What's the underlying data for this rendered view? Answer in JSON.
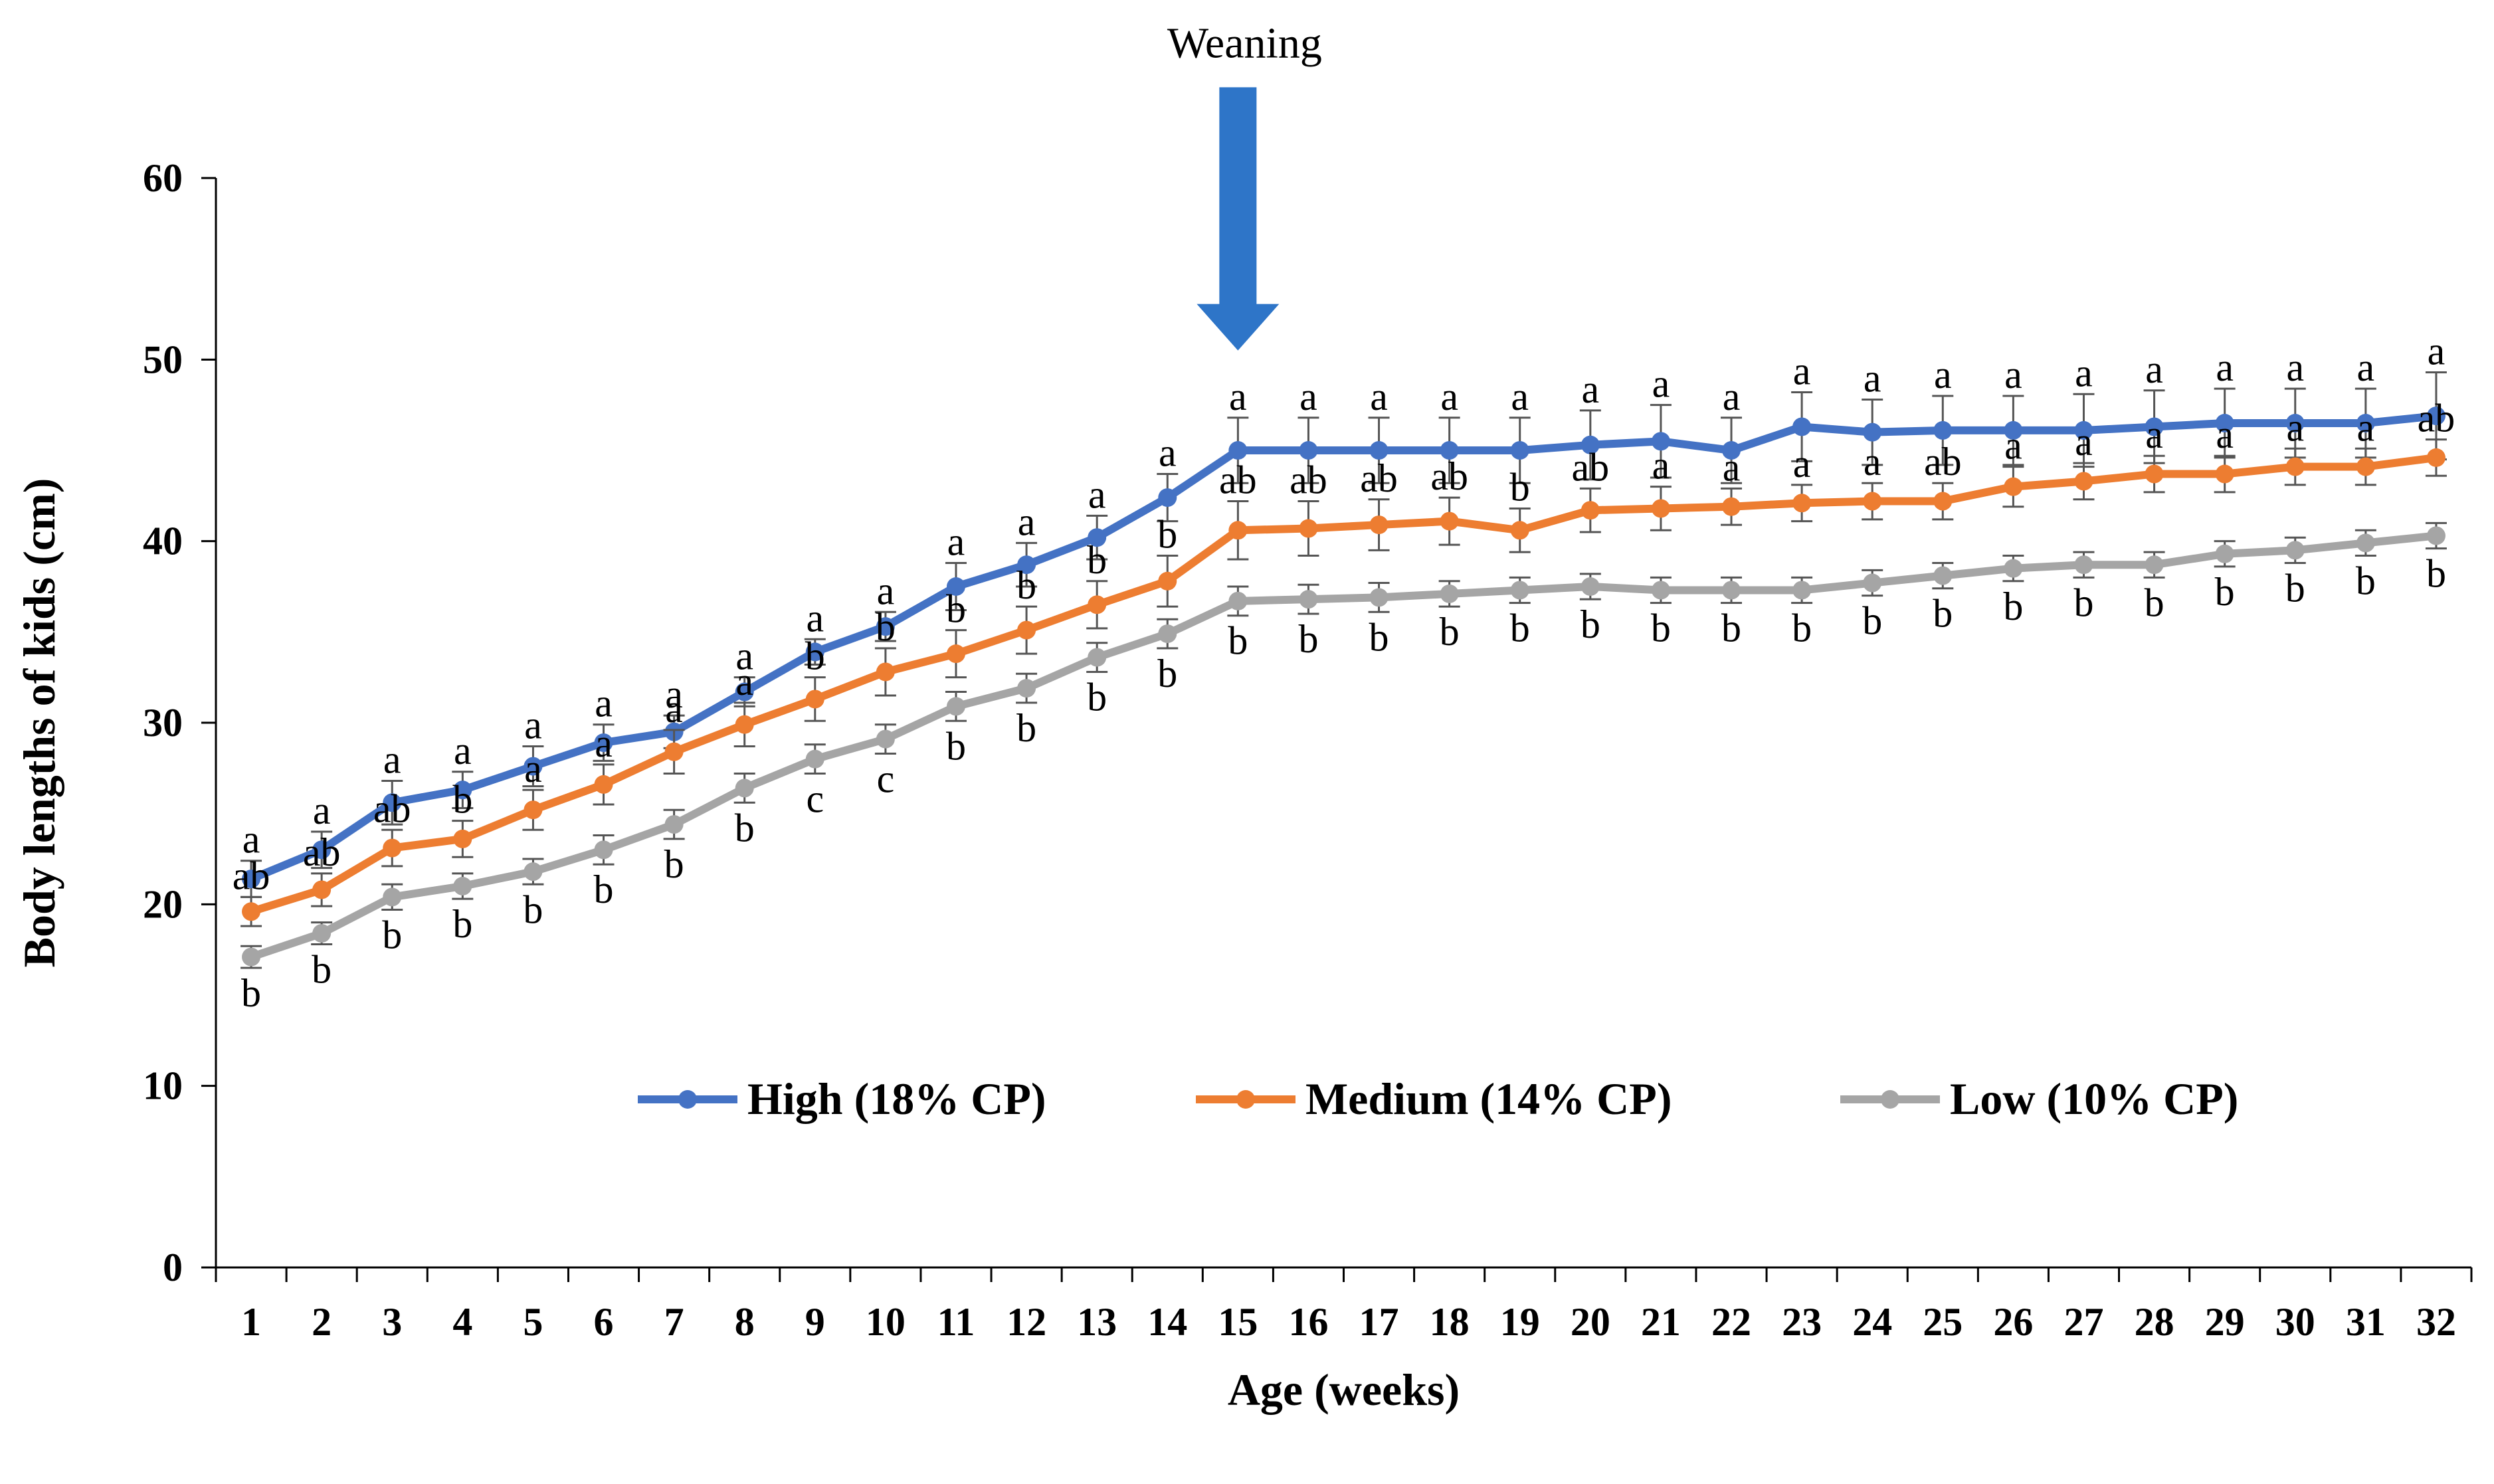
{
  "chart_data": {
    "type": "line",
    "title": "",
    "xlabel": "Age (weeks)",
    "ylabel": "Body lengths of kids (cm)",
    "ylim": [
      0,
      60
    ],
    "yticks": [
      0,
      10,
      20,
      30,
      40,
      50,
      60
    ],
    "x": [
      1,
      2,
      3,
      4,
      5,
      6,
      7,
      8,
      9,
      10,
      11,
      12,
      13,
      14,
      15,
      16,
      17,
      18,
      19,
      20,
      21,
      22,
      23,
      24,
      25,
      26,
      27,
      28,
      29,
      30,
      31,
      32
    ],
    "x_tick_labels": [
      "1",
      "2",
      "3",
      "4",
      "5",
      "6",
      "7",
      "8",
      "9",
      "10",
      "11",
      "12",
      "13",
      "14",
      "15",
      "16",
      "17",
      "18",
      "19",
      "20",
      "21",
      "22",
      "23",
      "24",
      "25",
      "26",
      "27",
      "28",
      "29",
      "30",
      "31",
      "32"
    ],
    "legend_position": "lower-right",
    "annotation": {
      "label": "Weaning",
      "x": 15,
      "y_top": 65,
      "y_tip": 50.5
    },
    "series": [
      {
        "name": "High (18% CP)",
        "color": "#4472C4",
        "values": [
          21.4,
          23.0,
          25.6,
          26.3,
          27.6,
          28.9,
          29.5,
          31.7,
          33.9,
          35.3,
          37.5,
          38.7,
          40.2,
          42.4,
          45.0,
          45.0,
          45.0,
          45.0,
          45.0,
          45.3,
          45.5,
          45.0,
          46.3,
          46.0,
          46.1,
          46.1,
          46.1,
          46.3,
          46.5,
          46.5,
          46.5,
          46.9
        ],
        "errors": [
          1.0,
          1.0,
          1.2,
          1.0,
          1.1,
          1.0,
          0.9,
          0.8,
          0.7,
          0.8,
          1.3,
          1.2,
          1.2,
          1.3,
          1.8,
          1.8,
          1.8,
          1.8,
          1.8,
          1.9,
          2.0,
          1.8,
          1.9,
          1.8,
          1.9,
          1.9,
          2.0,
          2.0,
          1.9,
          1.9,
          1.9,
          2.4
        ],
        "letters": [
          "a",
          "a",
          "a",
          "a",
          "a",
          "a",
          "a",
          "a",
          "a",
          "a",
          "a",
          "a",
          "a",
          "a",
          "a",
          "a",
          "a",
          "a",
          "a",
          "a",
          "a",
          "a",
          "a",
          "a",
          "a",
          "a",
          "a",
          "a",
          "a",
          "a",
          "a",
          "a"
        ]
      },
      {
        "name": "Medium (14% CP)",
        "color": "#ED7D31",
        "values": [
          19.6,
          20.8,
          23.1,
          23.6,
          25.2,
          26.6,
          28.4,
          29.9,
          31.3,
          32.8,
          33.8,
          35.1,
          36.5,
          37.8,
          40.6,
          40.7,
          40.9,
          41.1,
          40.6,
          41.7,
          41.8,
          41.9,
          42.1,
          42.2,
          42.2,
          43.0,
          43.3,
          43.7,
          43.7,
          44.1,
          44.1,
          44.6
        ],
        "errors": [
          0.8,
          0.9,
          1.0,
          1.0,
          1.1,
          1.1,
          1.2,
          1.2,
          1.2,
          1.3,
          1.3,
          1.3,
          1.3,
          1.4,
          1.6,
          1.5,
          1.4,
          1.3,
          1.2,
          1.2,
          1.2,
          1.0,
          1.0,
          1.0,
          1.0,
          1.1,
          1.0,
          1.0,
          1.0,
          1.0,
          1.0,
          1.0
        ],
        "letters": [
          "ab",
          "ab",
          "ab",
          "b",
          "a",
          "a",
          "a",
          "a",
          "b",
          "b",
          "b",
          "b",
          "b",
          "b",
          "ab",
          "ab",
          "ab",
          "ab",
          "b",
          "ab",
          "a",
          "a",
          "a",
          "a",
          "ab",
          "a",
          "a",
          "a",
          "a",
          "a",
          "a",
          "ab"
        ]
      },
      {
        "name": "Low (10% CP)",
        "color": "#A5A5A5",
        "values": [
          17.1,
          18.4,
          20.4,
          21.0,
          21.8,
          23.0,
          24.4,
          26.4,
          28.0,
          29.1,
          30.9,
          31.9,
          33.6,
          34.9,
          36.7,
          36.8,
          36.9,
          37.1,
          37.3,
          37.5,
          37.3,
          37.3,
          37.3,
          37.7,
          38.1,
          38.5,
          38.7,
          38.7,
          39.3,
          39.5,
          39.9,
          40.3
        ],
        "errors": [
          0.6,
          0.6,
          0.7,
          0.7,
          0.7,
          0.8,
          0.8,
          0.8,
          0.8,
          0.8,
          0.8,
          0.8,
          0.8,
          0.8,
          0.8,
          0.8,
          0.8,
          0.7,
          0.7,
          0.7,
          0.7,
          0.7,
          0.7,
          0.7,
          0.7,
          0.7,
          0.7,
          0.7,
          0.7,
          0.7,
          0.7,
          0.7
        ],
        "letters": [
          "b",
          "b",
          "b",
          "b",
          "b",
          "b",
          "b",
          "b",
          "c",
          "c",
          "b",
          "b",
          "b",
          "b",
          "b",
          "b",
          "b",
          "b",
          "b",
          "b",
          "b",
          "b",
          "b",
          "b",
          "b",
          "b",
          "b",
          "b",
          "b",
          "b",
          "b",
          "b"
        ]
      }
    ]
  }
}
